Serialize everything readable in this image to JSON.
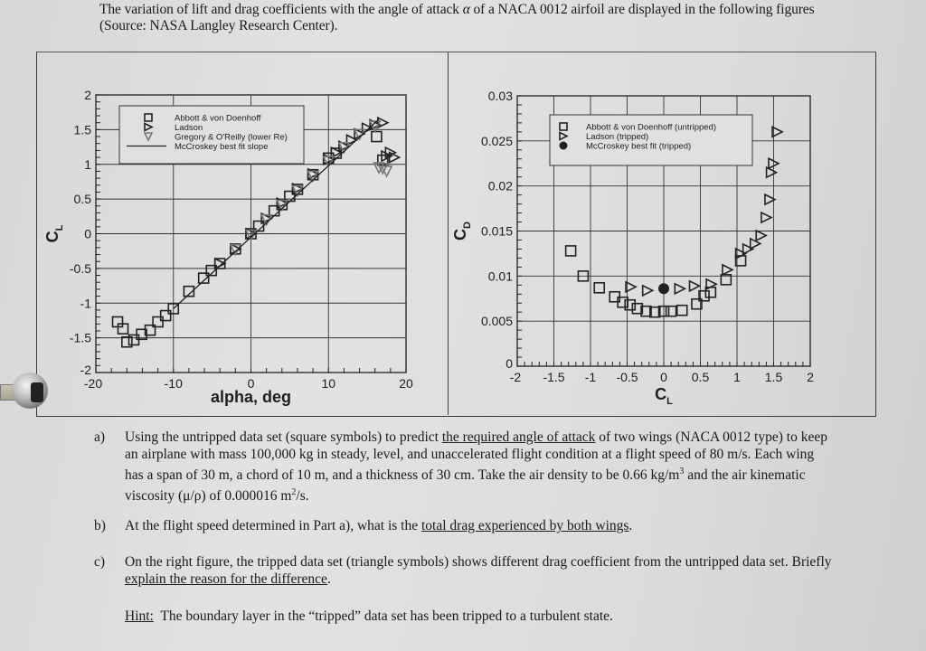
{
  "intro": {
    "text_before": "The variation of lift and drag coefficients with the angle of attack ",
    "alpha_symbol": "α",
    "text_after": " of a NACA 0012 airfoil are displayed in the following figures (Source: NASA Langley Research Center)."
  },
  "chart_data": [
    {
      "type": "scatter",
      "title": "",
      "xlabel": "alpha, deg",
      "ylabel": "C_L",
      "xlim": [
        -20,
        20
      ],
      "ylim": [
        -2,
        2
      ],
      "grid": true,
      "x_ticks": [
        "-20",
        "-10",
        "0",
        "10",
        "20"
      ],
      "y_ticks": [
        "2",
        "1.5",
        "1",
        "0.5",
        "0",
        "-0.5",
        "-1",
        "-1.5",
        "-2"
      ],
      "legend_position": "upper-left inside",
      "legend": [
        {
          "label": "Abbott & von Doenhoff",
          "marker": "square"
        },
        {
          "label": "Ladson",
          "marker": "triangle-right"
        },
        {
          "label": "Gregory & O'Reilly (lower Re)",
          "marker": "triangle-down"
        },
        {
          "label": "McCroskey best fit slope",
          "marker": "line"
        }
      ],
      "series": [
        {
          "name": "Abbott & von Doenhoff",
          "x": [
            -17.2,
            -16.5,
            -16.0,
            -15.1,
            -14.1,
            -13.0,
            -12.0,
            -11.0,
            -10.0,
            -8.0,
            -6.1,
            -5.1,
            -4.0,
            -2.0,
            0.0,
            1.0,
            3.0,
            4.0,
            5.0,
            6.0,
            8.0,
            10.0,
            11.0,
            16.2,
            17.0
          ],
          "y": [
            -1.27,
            -1.37,
            -1.56,
            -1.53,
            -1.45,
            -1.39,
            -1.27,
            -1.18,
            -1.08,
            -0.83,
            -0.64,
            -0.53,
            -0.43,
            -0.22,
            0.0,
            0.11,
            0.33,
            0.42,
            0.54,
            0.64,
            0.85,
            1.09,
            1.16,
            1.4,
            1.06
          ]
        },
        {
          "name": "Ladson",
          "x": [
            -4.0,
            -2.0,
            0.0,
            2.0,
            4.0,
            6.0,
            8.0,
            10.0,
            11.0,
            12.0,
            13.0,
            14.0,
            15.0,
            16.0,
            17.0,
            17.5,
            18.0,
            18.5
          ],
          "y": [
            -0.43,
            -0.22,
            0.0,
            0.22,
            0.44,
            0.65,
            0.86,
            1.07,
            1.17,
            1.26,
            1.35,
            1.44,
            1.52,
            1.57,
            1.6,
            1.12,
            1.17,
            1.1
          ]
        },
        {
          "name": "Gregory & O'Reilly (lower Re)",
          "x": [
            -2.0,
            0.0,
            2.0,
            4.0,
            6.0,
            8.0,
            10.0,
            12.0,
            14.0,
            16.0,
            16.5,
            17.0,
            17.5
          ],
          "y": [
            -0.23,
            -0.02,
            0.2,
            0.41,
            0.62,
            0.83,
            1.04,
            1.24,
            1.43,
            1.55,
            0.95,
            0.94,
            0.9
          ]
        },
        {
          "name": "McCroskey best fit slope",
          "x": [
            -10.0,
            16.5
          ],
          "y": [
            -1.08,
            1.65
          ]
        }
      ]
    },
    {
      "type": "scatter",
      "title": "",
      "xlabel": "C_L",
      "ylabel": "C_D",
      "xlim": [
        -2,
        2
      ],
      "ylim": [
        0,
        0.03
      ],
      "grid": true,
      "x_ticks": [
        "-2",
        "-1.5",
        "-1",
        "-0.5",
        "0",
        "0.5",
        "1",
        "1.5",
        "2"
      ],
      "y_ticks": [
        "0.03",
        "0.025",
        "0.02",
        "0.015",
        "0.01",
        "0.005",
        "0"
      ],
      "legend_position": "upper-left inside",
      "legend": [
        {
          "label": "Abbott & von Doenhoff (untripped)",
          "marker": "square"
        },
        {
          "label": "Ladson (tripped)",
          "marker": "triangle-right"
        },
        {
          "label": "McCroskey best fit (tripped)",
          "marker": "filled-circle"
        }
      ],
      "series": [
        {
          "name": "Abbott & von Doenhoff (untripped)",
          "x": [
            -1.27,
            -1.1,
            -0.88,
            -0.67,
            -0.56,
            -0.46,
            -0.36,
            -0.24,
            -0.12,
            0.0,
            0.1,
            0.25,
            0.45,
            0.55,
            0.64,
            0.85,
            1.05
          ],
          "y": [
            0.0128,
            0.01,
            0.0087,
            0.0077,
            0.0071,
            0.0068,
            0.0064,
            0.0061,
            0.006,
            0.0061,
            0.0061,
            0.0062,
            0.0069,
            0.0078,
            0.0082,
            0.0096,
            0.0117
          ]
        },
        {
          "name": "Ladson (tripped)",
          "x": [
            -0.45,
            -0.22,
            0.22,
            0.42,
            0.65,
            0.87,
            1.05,
            1.15,
            1.25,
            1.33,
            1.4,
            1.45,
            1.47,
            1.5,
            1.55
          ],
          "y": [
            0.0088,
            0.0084,
            0.0086,
            0.0089,
            0.0091,
            0.0107,
            0.0125,
            0.013,
            0.0136,
            0.0145,
            0.0165,
            0.0185,
            0.0215,
            0.0225,
            0.026
          ]
        },
        {
          "name": "McCroskey best fit (tripped)",
          "x": [
            0.0
          ],
          "y": [
            0.0086
          ]
        }
      ]
    }
  ],
  "questions": [
    {
      "label": "a)",
      "parts": [
        {
          "text": "Using the untripped data set (square symbols) to predict ",
          "underline": false
        },
        {
          "text": "the required angle of attack",
          "underline": true
        },
        {
          "text": " of two wings (NACA 0012 type) to keep an airplane with mass 100,000 kg in steady, level, and unaccelerated flight condition at a flight speed of 80 m/s.  Each wing has a span of 30 m, a chord of 10 m, and a thickness of 30 cm.  Take the air density to be 0.66 kg/m",
          "underline": false
        },
        {
          "text": "3",
          "sup": true
        },
        {
          "text": " and the air kinematic viscosity (μ/ρ) of 0.000016 m",
          "underline": false
        },
        {
          "text": "2",
          "sup": true
        },
        {
          "text": "/s.",
          "underline": false
        }
      ]
    },
    {
      "label": "b)",
      "parts": [
        {
          "text": "At the flight speed determined in Part a), what is the ",
          "underline": false
        },
        {
          "text": "total drag experienced by both wings",
          "underline": true
        },
        {
          "text": ".",
          "underline": false
        }
      ]
    },
    {
      "label": "c)",
      "parts": [
        {
          "text": "On the right figure, the tripped data set (triangle symbols) shows different drag coefficient from the untripped data set.  Briefly ",
          "underline": false
        },
        {
          "text": "explain the reason for the difference",
          "underline": true
        },
        {
          "text": ".",
          "underline": false
        }
      ]
    }
  ],
  "hint": {
    "label": "Hint:",
    "text": "  The boundary layer in the “tripped” data set has been tripped to a turbulent state."
  }
}
